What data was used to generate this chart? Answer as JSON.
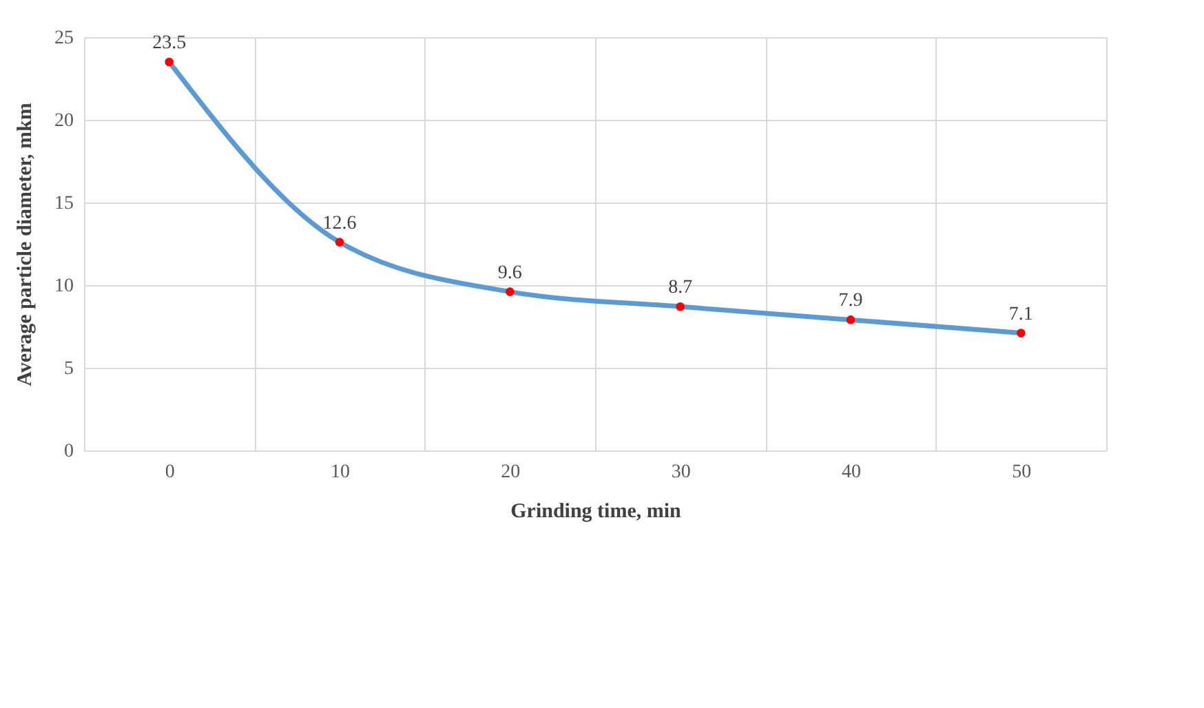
{
  "chart_data": {
    "type": "line",
    "xlabel": "Grinding time, min",
    "ylabel": "Average particle diameter, mkm",
    "categories": [
      "0",
      "10",
      "20",
      "30",
      "40",
      "50"
    ],
    "series": [
      {
        "color": "#5b9bd5",
        "colors": [
          "#ff0000",
          "#ff0000",
          "#ff0000",
          "#ff0000",
          "#ff0000",
          "#ff0000"
        ],
        "values": [
          23.5,
          12.6,
          9.6,
          8.7,
          7.9,
          7.1
        ]
      }
    ],
    "ylim": [
      0,
      25
    ],
    "yticks": [
      0,
      5,
      10,
      15,
      20,
      25
    ],
    "grid": true,
    "marker": "circle",
    "line_style": "solid",
    "data_labels": true
  }
}
